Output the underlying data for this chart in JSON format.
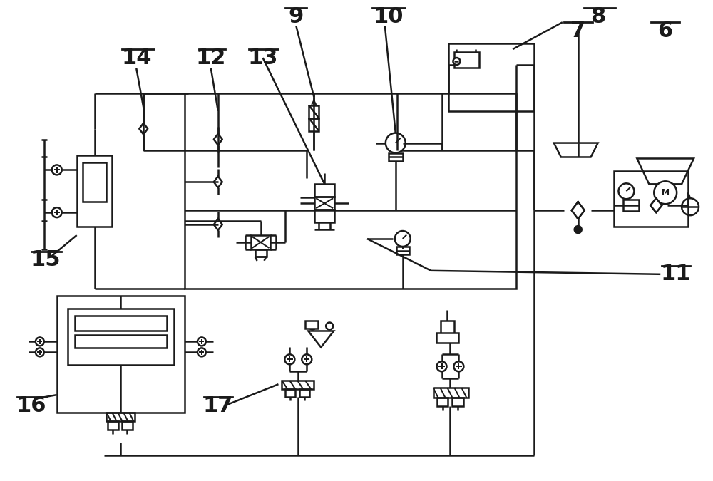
{
  "bg_color": "#ffffff",
  "line_color": "#1a1a1a",
  "line_width": 1.8,
  "fig_width": 10.0,
  "fig_height": 6.75,
  "dpi": 100
}
